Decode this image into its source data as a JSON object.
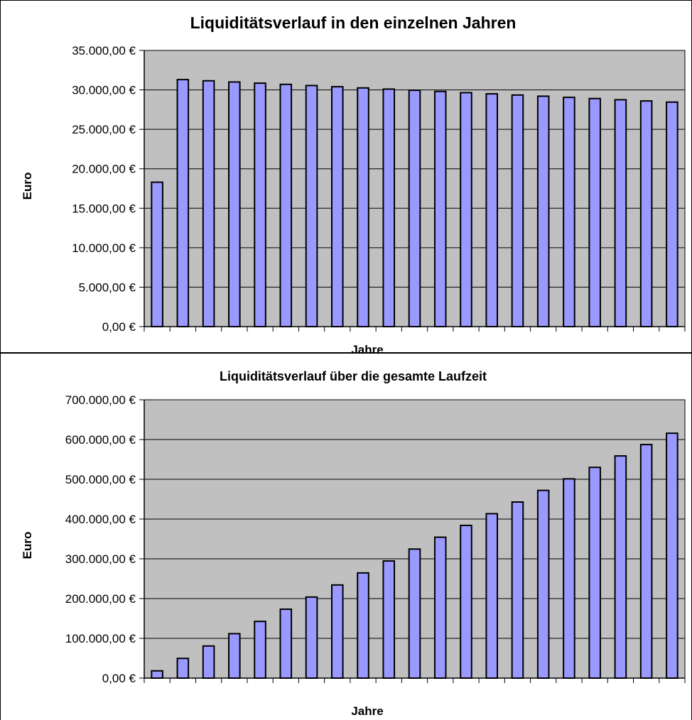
{
  "colors": {
    "plot_background": "#c0c0c0",
    "bar_fill": "#9999ff",
    "bar_stroke": "#000000",
    "gridline": "#000000",
    "frame": "#000000",
    "text": "#000000"
  },
  "chart_data": [
    {
      "type": "bar",
      "title": "Liquiditätsverlauf in den einzelnen Jahren",
      "xlabel": "Jahre",
      "ylabel": "Euro",
      "ylim": [
        0,
        35000
      ],
      "yticks": [
        0,
        5000,
        10000,
        15000,
        20000,
        25000,
        30000,
        35000
      ],
      "ytick_labels": [
        "0,00 €",
        "5.000,00 €",
        "10.000,00 €",
        "15.000,00 €",
        "20.000,00 €",
        "25.000,00 €",
        "30.000,00 €",
        "35.000,00 €"
      ],
      "grid": "horizontal",
      "legend": "none",
      "values": [
        18300,
        31300,
        31150,
        31000,
        30850,
        30700,
        30550,
        30400,
        30250,
        30100,
        29950,
        29800,
        29650,
        29500,
        29350,
        29200,
        29050,
        28900,
        28750,
        28600,
        28450
      ]
    },
    {
      "type": "bar",
      "title": "Liquiditätsverlauf über die gesamte Laufzeit",
      "xlabel": "Jahre",
      "ylabel": "Euro",
      "ylim": [
        0,
        700000
      ],
      "yticks": [
        0,
        100000,
        200000,
        300000,
        400000,
        500000,
        600000,
        700000
      ],
      "ytick_labels": [
        "0,00 €",
        "100.000,00 €",
        "200.000,00 €",
        "300.000,00 €",
        "400.000,00 €",
        "500.000,00 €",
        "600.000,00 €",
        "700.000,00 €"
      ],
      "grid": "horizontal",
      "legend": "none",
      "values": [
        18300,
        49600,
        80750,
        111750,
        142600,
        173300,
        203850,
        234250,
        264500,
        294600,
        324550,
        354350,
        384000,
        413500,
        442850,
        472050,
        501100,
        530000,
        558750,
        587350,
        615800
      ]
    }
  ]
}
